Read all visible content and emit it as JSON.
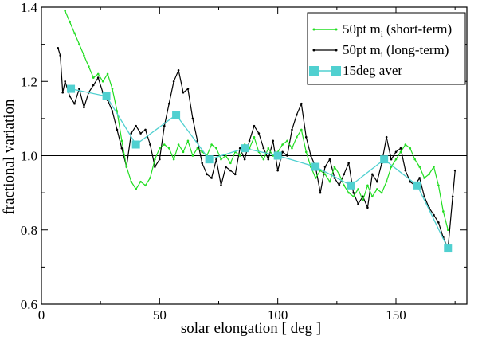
{
  "chart_data": {
    "type": "line",
    "title": "",
    "xlabel": "solar elongation [ deg ]",
    "ylabel": "fractional variation",
    "xlim": [
      0,
      180
    ],
    "ylim": [
      0.6,
      1.4
    ],
    "xticks": [
      0,
      50,
      100,
      150
    ],
    "yticks": [
      0.6,
      0.8,
      1.0,
      1.2,
      1.4
    ],
    "xtick_labels": [
      "0",
      "50",
      "100",
      "150"
    ],
    "ytick_labels": [
      "0.6",
      "0.8",
      "1.0",
      "1.2",
      "1.4"
    ],
    "reference_line": 1.0,
    "legend_position": "top-right",
    "series": [
      {
        "name": "50pt m_i (short-term)",
        "label_main": "50pt m",
        "label_sub": "i",
        "label_rest": " (short-term)",
        "color": "#22dd22",
        "marker": "dot",
        "x": [
          10,
          12,
          14,
          16,
          18,
          20,
          22,
          24,
          26,
          28,
          30,
          32,
          34,
          36,
          38,
          40,
          42,
          44,
          46,
          48,
          50,
          52,
          54,
          56,
          58,
          60,
          62,
          64,
          66,
          68,
          70,
          72,
          74,
          76,
          78,
          80,
          82,
          84,
          86,
          88,
          90,
          92,
          94,
          96,
          98,
          100,
          102,
          104,
          106,
          108,
          110,
          112,
          114,
          116,
          118,
          120,
          122,
          124,
          126,
          128,
          130,
          132,
          134,
          136,
          138,
          140,
          142,
          144,
          146,
          148,
          150,
          152,
          154,
          156,
          158,
          160,
          162,
          164,
          166,
          168,
          170,
          172
        ],
        "y": [
          1.39,
          1.36,
          1.33,
          1.3,
          1.27,
          1.24,
          1.21,
          1.22,
          1.2,
          1.22,
          1.18,
          1.12,
          1.04,
          0.97,
          0.93,
          0.91,
          0.93,
          0.92,
          0.94,
          0.99,
          1.02,
          1.03,
          1.02,
          0.99,
          1.03,
          1.01,
          1.04,
          1.0,
          1.02,
          1.01,
          1.0,
          1.03,
          1.02,
          0.99,
          1.0,
          0.98,
          1.01,
          1.0,
          1.03,
          1.02,
          1.05,
          1.01,
          0.99,
          1.02,
          1.0,
          1.01,
          1.03,
          1.04,
          1.02,
          1.05,
          1.07,
          1.01,
          0.97,
          0.94,
          0.96,
          0.95,
          0.93,
          0.97,
          0.95,
          0.92,
          0.9,
          0.89,
          0.91,
          0.88,
          0.92,
          0.89,
          0.91,
          0.9,
          0.93,
          0.97,
          0.99,
          1.01,
          1.03,
          1.02,
          0.99,
          0.97,
          0.94,
          0.95,
          0.97,
          0.92,
          0.85,
          0.8
        ]
      },
      {
        "name": "50pt m_i (long-term)",
        "label_main": "50pt m",
        "label_sub": "i",
        "label_rest": " (long-term)",
        "color": "#000000",
        "marker": "dot",
        "x": [
          7,
          8,
          9,
          10,
          12,
          14,
          16,
          18,
          20,
          22,
          24,
          26,
          28,
          30,
          32,
          34,
          36,
          38,
          40,
          42,
          44,
          46,
          48,
          50,
          52,
          54,
          56,
          58,
          60,
          62,
          64,
          66,
          68,
          70,
          72,
          74,
          76,
          78,
          80,
          82,
          84,
          86,
          88,
          90,
          92,
          94,
          96,
          98,
          100,
          102,
          104,
          106,
          108,
          110,
          112,
          114,
          116,
          118,
          120,
          122,
          124,
          126,
          128,
          130,
          132,
          134,
          136,
          138,
          140,
          142,
          144,
          146,
          148,
          150,
          152,
          154,
          156,
          158,
          160,
          162,
          164,
          166,
          168,
          170,
          172,
          174,
          175
        ],
        "y": [
          1.29,
          1.27,
          1.17,
          1.2,
          1.16,
          1.14,
          1.18,
          1.13,
          1.17,
          1.19,
          1.21,
          1.17,
          1.15,
          1.12,
          1.07,
          1.02,
          0.97,
          1.06,
          1.08,
          1.06,
          1.07,
          1.03,
          0.97,
          0.99,
          1.08,
          1.14,
          1.2,
          1.23,
          1.17,
          1.18,
          1.1,
          1.04,
          0.98,
          0.95,
          0.94,
          0.99,
          0.92,
          0.97,
          0.96,
          0.95,
          1.02,
          0.99,
          1.04,
          1.08,
          1.06,
          1.02,
          0.99,
          1.04,
          0.96,
          1.01,
          1.0,
          1.07,
          1.11,
          1.14,
          1.05,
          1.0,
          0.97,
          0.9,
          0.97,
          0.99,
          0.94,
          0.92,
          0.95,
          0.98,
          0.9,
          0.87,
          0.89,
          0.86,
          0.95,
          0.93,
          0.98,
          1.05,
          0.99,
          1.01,
          1.02,
          0.96,
          0.93,
          0.92,
          0.94,
          0.89,
          0.86,
          0.84,
          0.82,
          0.78,
          0.75,
          0.89,
          0.96
        ]
      },
      {
        "name": "15deg aver",
        "color": "#50d0d0",
        "marker": "square",
        "x": [
          12.5,
          27.5,
          40,
          57,
          71,
          86,
          100,
          116,
          131,
          145,
          159,
          172
        ],
        "y": [
          1.18,
          1.16,
          1.03,
          1.11,
          0.99,
          1.02,
          1.0,
          0.97,
          0.92,
          0.99,
          0.92,
          0.75
        ]
      }
    ]
  }
}
